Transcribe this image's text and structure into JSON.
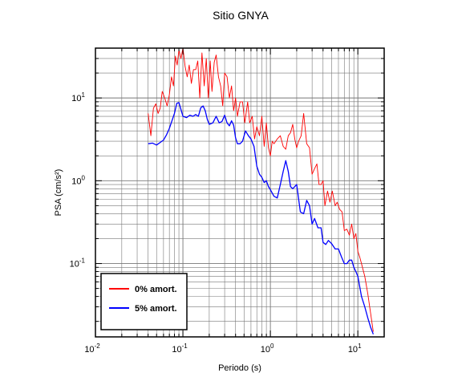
{
  "chart_data": {
    "type": "line",
    "title": "Sitio GNYA",
    "xlabel": "Periodo (s)",
    "ylabel": "PSA (cm/s²)",
    "x_scale": "log",
    "y_scale": "log",
    "xlim": [
      0.01,
      20
    ],
    "ylim": [
      0.013,
      40
    ],
    "grid": true,
    "legend_position": "bottom-left",
    "x_tick_labels": [
      {
        "value": 0.01,
        "base": "10",
        "exp": "-2"
      },
      {
        "value": 0.1,
        "base": "10",
        "exp": "-1"
      },
      {
        "value": 1,
        "base": "10",
        "exp": "0"
      },
      {
        "value": 10,
        "base": "10",
        "exp": "1"
      }
    ],
    "y_tick_labels": [
      {
        "value": 0.1,
        "base": "10",
        "exp": "-1"
      },
      {
        "value": 1,
        "base": "10",
        "exp": "0"
      },
      {
        "value": 10,
        "base": "10",
        "exp": "1"
      }
    ],
    "series": [
      {
        "name": "0% amort.",
        "color": "#ff0000",
        "x": [
          0.04,
          0.043,
          0.046,
          0.049,
          0.052,
          0.055,
          0.058,
          0.062,
          0.066,
          0.07,
          0.074,
          0.078,
          0.082,
          0.086,
          0.09,
          0.095,
          0.1,
          0.106,
          0.112,
          0.118,
          0.125,
          0.132,
          0.14,
          0.148,
          0.156,
          0.165,
          0.175,
          0.185,
          0.195,
          0.205,
          0.215,
          0.228,
          0.24,
          0.255,
          0.27,
          0.285,
          0.3,
          0.32,
          0.34,
          0.36,
          0.38,
          0.4,
          0.42,
          0.45,
          0.48,
          0.51,
          0.55,
          0.58,
          0.62,
          0.66,
          0.7,
          0.75,
          0.8,
          0.85,
          0.9,
          0.95,
          1.0,
          1.05,
          1.1,
          1.2,
          1.3,
          1.4,
          1.5,
          1.6,
          1.7,
          1.8,
          1.9,
          2.0,
          2.1,
          2.25,
          2.4,
          2.6,
          2.8,
          3.0,
          3.2,
          3.4,
          3.6,
          3.8,
          4.0,
          4.2,
          4.5,
          4.8,
          5.1,
          5.5,
          5.8,
          6.2,
          6.6,
          7.0,
          7.5,
          8.0,
          8.5,
          9.0,
          9.5,
          10,
          10.5,
          11,
          12,
          13,
          14,
          15
        ],
        "y": [
          6.5,
          3.5,
          7.5,
          8.5,
          6.5,
          7.5,
          12,
          10,
          8,
          11,
          18,
          14,
          32,
          25,
          38,
          30,
          40,
          24,
          18,
          25,
          15,
          22,
          22,
          28,
          10,
          35,
          14,
          30,
          10,
          28,
          12,
          27,
          33,
          18,
          14,
          8,
          20,
          18,
          10,
          14,
          7,
          10,
          6,
          9,
          9,
          5,
          9,
          5,
          6,
          3.2,
          4.5,
          3.5,
          6,
          2.6,
          5,
          2.5,
          2,
          3,
          2.8,
          3.2,
          3.5,
          2.6,
          2.4,
          3.5,
          3.8,
          4.8,
          3.2,
          2.5,
          3,
          3.5,
          6.5,
          2.8,
          2.5,
          1.2,
          1.4,
          1.6,
          0.9,
          0.9,
          1.0,
          0.5,
          0.75,
          0.55,
          0.75,
          0.5,
          0.55,
          0.45,
          0.42,
          0.25,
          0.26,
          0.22,
          0.3,
          0.2,
          0.23,
          0.14,
          0.12,
          0.1,
          0.07,
          0.043,
          0.025,
          0.015
        ]
      },
      {
        "name": "5% amort.",
        "color": "#0000ff",
        "x": [
          0.04,
          0.045,
          0.05,
          0.055,
          0.06,
          0.065,
          0.07,
          0.075,
          0.08,
          0.085,
          0.09,
          0.1,
          0.11,
          0.12,
          0.13,
          0.14,
          0.15,
          0.16,
          0.17,
          0.18,
          0.19,
          0.2,
          0.22,
          0.24,
          0.26,
          0.28,
          0.3,
          0.32,
          0.34,
          0.36,
          0.38,
          0.4,
          0.42,
          0.45,
          0.48,
          0.52,
          0.56,
          0.6,
          0.65,
          0.7,
          0.75,
          0.8,
          0.85,
          0.9,
          0.95,
          1.0,
          1.1,
          1.2,
          1.3,
          1.4,
          1.5,
          1.6,
          1.7,
          1.8,
          2.0,
          2.2,
          2.4,
          2.6,
          2.8,
          3.0,
          3.2,
          3.5,
          3.8,
          4.0,
          4.3,
          4.6,
          5.0,
          5.5,
          6.0,
          6.5,
          7.0,
          7.5,
          8.0,
          8.5,
          9.0,
          9.5,
          10,
          11,
          12,
          13,
          14,
          15
        ],
        "y": [
          2.8,
          2.85,
          2.7,
          2.9,
          3.1,
          3.6,
          4.3,
          5.3,
          6.5,
          8.6,
          8.8,
          6.0,
          5.8,
          6.2,
          6.0,
          6.3,
          6.0,
          7.6,
          8.0,
          7.0,
          5.5,
          4.8,
          5.0,
          6.0,
          5.0,
          5.2,
          6.2,
          5.0,
          4.6,
          5.3,
          4.7,
          3.3,
          2.8,
          2.8,
          3.0,
          4.0,
          3.5,
          3.2,
          2.6,
          1.5,
          1.2,
          1.1,
          0.95,
          1.0,
          0.85,
          0.78,
          0.65,
          0.62,
          0.9,
          1.3,
          1.75,
          1.3,
          0.85,
          0.8,
          0.9,
          0.42,
          0.4,
          0.58,
          0.5,
          0.3,
          0.35,
          0.27,
          0.27,
          0.18,
          0.17,
          0.19,
          0.175,
          0.15,
          0.15,
          0.12,
          0.1,
          0.1,
          0.11,
          0.11,
          0.09,
          0.08,
          0.07,
          0.04,
          0.03,
          0.022,
          0.017,
          0.014
        ]
      }
    ]
  }
}
